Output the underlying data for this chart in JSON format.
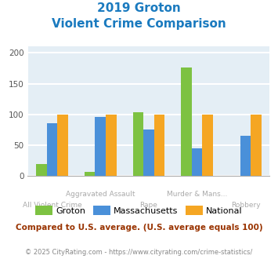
{
  "title_line1": "2019 Groton",
  "title_line2": "Violent Crime Comparison",
  "title_color": "#1a7abf",
  "categories": [
    "All Violent Crime",
    "Aggravated Assault",
    "Rape",
    "Murder & Mans...",
    "Robbery"
  ],
  "top_labels": [
    "",
    "Aggravated Assault",
    "",
    "Murder & Mans...",
    ""
  ],
  "bottom_labels": [
    "All Violent Crime",
    "",
    "Rape",
    "",
    "Robbery"
  ],
  "series": {
    "Groton": [
      20,
      7,
      104,
      176,
      0
    ],
    "Massachusetts": [
      86,
      96,
      75,
      45,
      65
    ],
    "National": [
      100,
      100,
      100,
      100,
      100
    ]
  },
  "colors": {
    "Groton": "#7dc242",
    "Massachusetts": "#4a90d9",
    "National": "#f5a623"
  },
  "ylim": [
    0,
    210
  ],
  "yticks": [
    0,
    50,
    100,
    150,
    200
  ],
  "plot_bg_color": "#e4eef5",
  "grid_color": "#ffffff",
  "note_text": "Compared to U.S. average. (U.S. average equals 100)",
  "note_color": "#993300",
  "footer_text": "© 2025 CityRating.com - https://www.cityrating.com/crime-statistics/",
  "footer_color": "#888888",
  "bar_width": 0.22
}
